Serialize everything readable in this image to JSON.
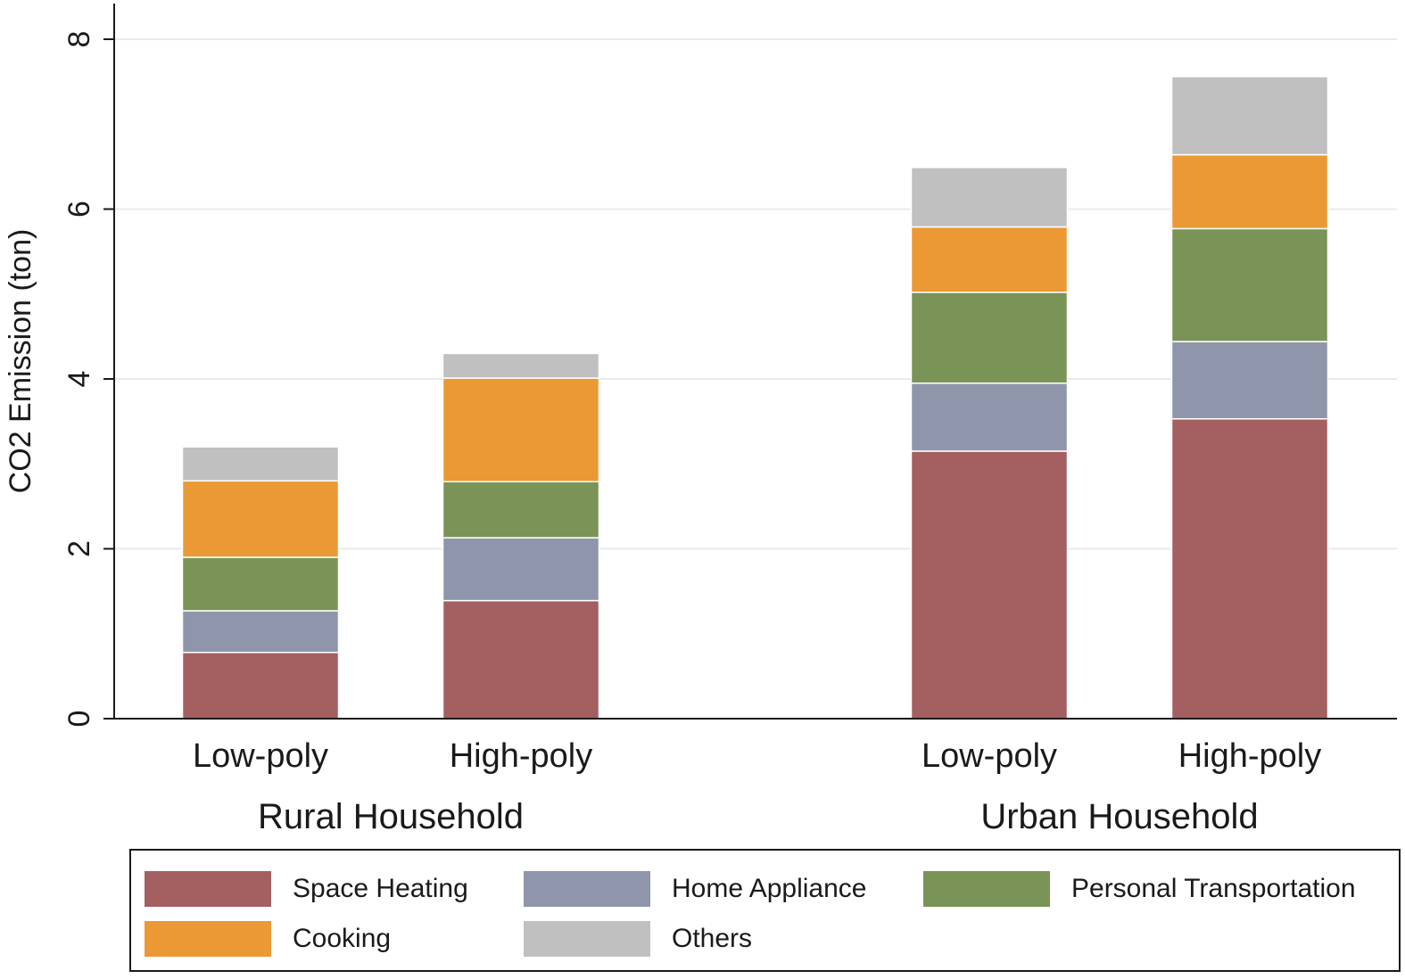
{
  "chart_data": {
    "type": "bar",
    "stacked": true,
    "title": "",
    "xlabel": "",
    "ylabel": "CO2 Emission (ton)",
    "ylim": [
      0,
      8.4
    ],
    "yticks": [
      0,
      2,
      4,
      6,
      8
    ],
    "grid": true,
    "legend_position": "bottom",
    "groups": [
      "Rural Household",
      "Urban Household"
    ],
    "categories": [
      "Low-poly",
      "High-poly",
      "Low-poly",
      "High-poly"
    ],
    "category_group": [
      0,
      0,
      1,
      1
    ],
    "series": [
      {
        "name": "Space Heating",
        "color": "#a45f61",
        "values": [
          0.78,
          1.39,
          3.15,
          3.53
        ]
      },
      {
        "name": "Home Appliance",
        "color": "#8f95aa",
        "values": [
          0.49,
          0.74,
          0.8,
          0.91
        ]
      },
      {
        "name": "Personal Transportation",
        "color": "#7a9356",
        "values": [
          0.63,
          0.66,
          1.07,
          1.33
        ]
      },
      {
        "name": "Cooking",
        "color": "#ea9935",
        "values": [
          0.9,
          1.22,
          0.77,
          0.87
        ]
      },
      {
        "name": "Others",
        "color": "#c0c0c0",
        "values": [
          0.4,
          0.29,
          0.7,
          0.92
        ]
      }
    ]
  }
}
